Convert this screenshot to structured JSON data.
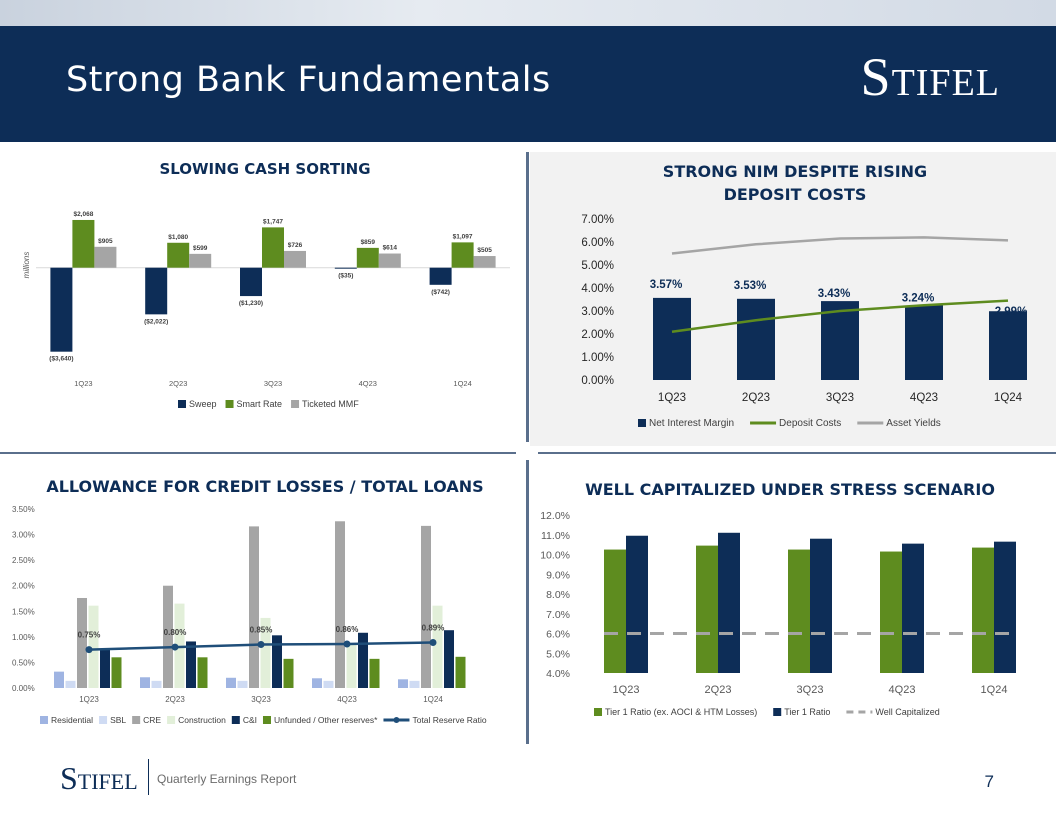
{
  "header": {
    "title": "Strong Bank Fundamentals",
    "logo": "Stifel"
  },
  "footer": {
    "logo": "Stifel",
    "text": "Quarterly Earnings Report",
    "page": "7"
  },
  "chart_data": [
    {
      "id": "cash",
      "type": "bar",
      "title": "SLOWING CASH SORTING",
      "ylabel": "millions",
      "ylim": [
        -4000,
        2500
      ],
      "categories": [
        "1Q23",
        "2Q23",
        "3Q23",
        "4Q23",
        "1Q24"
      ],
      "series": [
        {
          "name": "Sweep",
          "color": "#0d2d57",
          "values": [
            -3640,
            -2022,
            -1230,
            -35,
            -742
          ],
          "labels": [
            "($3,640)",
            "($2,022)",
            "($1,230)",
            "($35)",
            "($742)"
          ]
        },
        {
          "name": "Smart Rate",
          "color": "#5e8c1f",
          "values": [
            2068,
            1080,
            1747,
            859,
            1097
          ],
          "labels": [
            "$2,068",
            "$1,080",
            "$1,747",
            "$859",
            "$1,097"
          ]
        },
        {
          "name": "Ticketed MMF",
          "color": "#a5a5a5",
          "values": [
            905,
            599,
            726,
            614,
            505
          ],
          "labels": [
            "$905",
            "$599",
            "$726",
            "$614",
            "$505"
          ]
        }
      ]
    },
    {
      "id": "nim",
      "type": "bar",
      "title": "STRONG NIM DESPITE RISING DEPOSIT COSTS",
      "ylim": [
        0,
        7
      ],
      "yticks": [
        "0.00%",
        "1.00%",
        "2.00%",
        "3.00%",
        "4.00%",
        "5.00%",
        "6.00%",
        "7.00%"
      ],
      "categories": [
        "1Q23",
        "2Q23",
        "3Q23",
        "4Q23",
        "1Q24"
      ],
      "bars": {
        "name": "Net Interest Margin",
        "color": "#0d2d57",
        "values": [
          3.57,
          3.53,
          3.43,
          3.24,
          2.99
        ],
        "labels": [
          "3.57%",
          "3.53%",
          "3.43%",
          "3.24%",
          "2.99%"
        ]
      },
      "lines": [
        {
          "name": "Deposit Costs",
          "color": "#5e8c1f",
          "values": [
            2.1,
            2.6,
            3.0,
            3.25,
            3.45
          ]
        },
        {
          "name": "Asset Yields",
          "color": "#a5a5a5",
          "values": [
            5.5,
            5.9,
            6.15,
            6.2,
            6.07
          ]
        }
      ]
    },
    {
      "id": "acl",
      "type": "bar",
      "title": "ALLOWANCE FOR CREDIT LOSSES / TOTAL LOANS",
      "ylim": [
        0,
        3.5
      ],
      "yticks": [
        "0.00%",
        "0.50%",
        "1.00%",
        "1.50%",
        "2.00%",
        "2.50%",
        "3.00%",
        "3.50%"
      ],
      "categories": [
        "1Q23",
        "2Q23",
        "3Q23",
        "4Q23",
        "1Q24"
      ],
      "series": [
        {
          "name": "Residential",
          "color": "#9fb4e2",
          "values": [
            0.32,
            0.21,
            0.2,
            0.19,
            0.17
          ]
        },
        {
          "name": "SBL",
          "color": "#cfdbf3",
          "values": [
            0.14,
            0.14,
            0.14,
            0.14,
            0.14
          ]
        },
        {
          "name": "CRE",
          "color": "#a5a5a5",
          "values": [
            1.76,
            2.0,
            3.16,
            3.26,
            3.17
          ]
        },
        {
          "name": "Construction",
          "color": "#e2efd9",
          "values": [
            1.61,
            1.65,
            1.37,
            0.87,
            1.61
          ]
        },
        {
          "name": "C&I",
          "color": "#0d2d57",
          "values": [
            0.77,
            0.91,
            1.03,
            1.08,
            1.13
          ]
        },
        {
          "name": "Unfunded / Other reserves*",
          "color": "#5e8c1f",
          "values": [
            0.6,
            0.6,
            0.57,
            0.57,
            0.61
          ]
        }
      ],
      "line": {
        "name": "Total Reserve Ratio",
        "color": "#1f4e79",
        "values": [
          0.75,
          0.8,
          0.85,
          0.86,
          0.89
        ],
        "labels": [
          "0.75%",
          "0.80%",
          "0.85%",
          "0.86%",
          "0.89%"
        ]
      }
    },
    {
      "id": "capital",
      "type": "bar",
      "title": "WELL CAPITALIZED UNDER STRESS SCENARIO",
      "ylim": [
        4,
        12
      ],
      "yticks": [
        "4.0%",
        "5.0%",
        "6.0%",
        "7.0%",
        "8.0%",
        "9.0%",
        "10.0%",
        "11.0%",
        "12.0%"
      ],
      "categories": [
        "1Q23",
        "2Q23",
        "3Q23",
        "4Q23",
        "1Q24"
      ],
      "series": [
        {
          "name": "Tier 1 Ratio (ex. AOCI & HTM Losses)",
          "color": "#5e8c1f",
          "values": [
            10.25,
            10.45,
            10.25,
            10.15,
            10.35
          ]
        },
        {
          "name": "Tier 1 Ratio",
          "color": "#0d2d57",
          "values": [
            10.95,
            11.1,
            10.8,
            10.55,
            10.65
          ]
        }
      ],
      "line": {
        "name": "Well Capitalized",
        "color": "#a5a5a5",
        "value": 6.0
      }
    }
  ]
}
